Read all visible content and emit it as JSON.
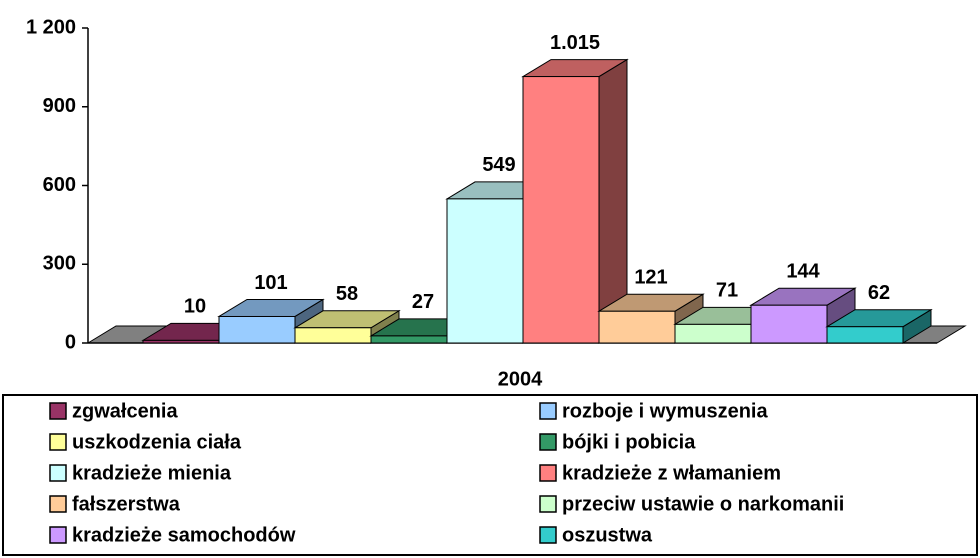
{
  "chart_data": {
    "type": "bar3d",
    "categories": [
      "2004"
    ],
    "series": [
      {
        "name": "zgwałcenia",
        "color": "#993366",
        "values": [
          10
        ]
      },
      {
        "name": "rozboje i wymuszenia",
        "color": "#99CCFF",
        "values": [
          101
        ]
      },
      {
        "name": "uszkodzenia ciała",
        "color": "#FFFF99",
        "values": [
          58
        ]
      },
      {
        "name": "bójki i pobicia",
        "color": "#339966",
        "values": [
          27
        ]
      },
      {
        "name": "kradzieże mienia",
        "color": "#CCFFFF",
        "values": [
          549
        ]
      },
      {
        "name": "kradzieże z włamaniem",
        "color": "#FF8080",
        "values": [
          1015
        ],
        "value_labels": [
          "1.015"
        ]
      },
      {
        "name": "fałszerstwa",
        "color": "#FFCC99",
        "values": [
          121
        ]
      },
      {
        "name": "przeciw ustawie o narkomanii",
        "color": "#CCFFCC",
        "values": [
          71
        ]
      },
      {
        "name": "kradzieże samochodów",
        "color": "#CC99FF",
        "values": [
          144
        ]
      },
      {
        "name": "oszustwa",
        "color": "#33CCCC",
        "values": [
          62
        ]
      }
    ],
    "ylim": [
      0,
      1200
    ],
    "yticks": [
      0,
      300,
      600,
      900,
      {
        "value": 1200,
        "label": "1 200"
      }
    ],
    "legend": "bottom"
  }
}
